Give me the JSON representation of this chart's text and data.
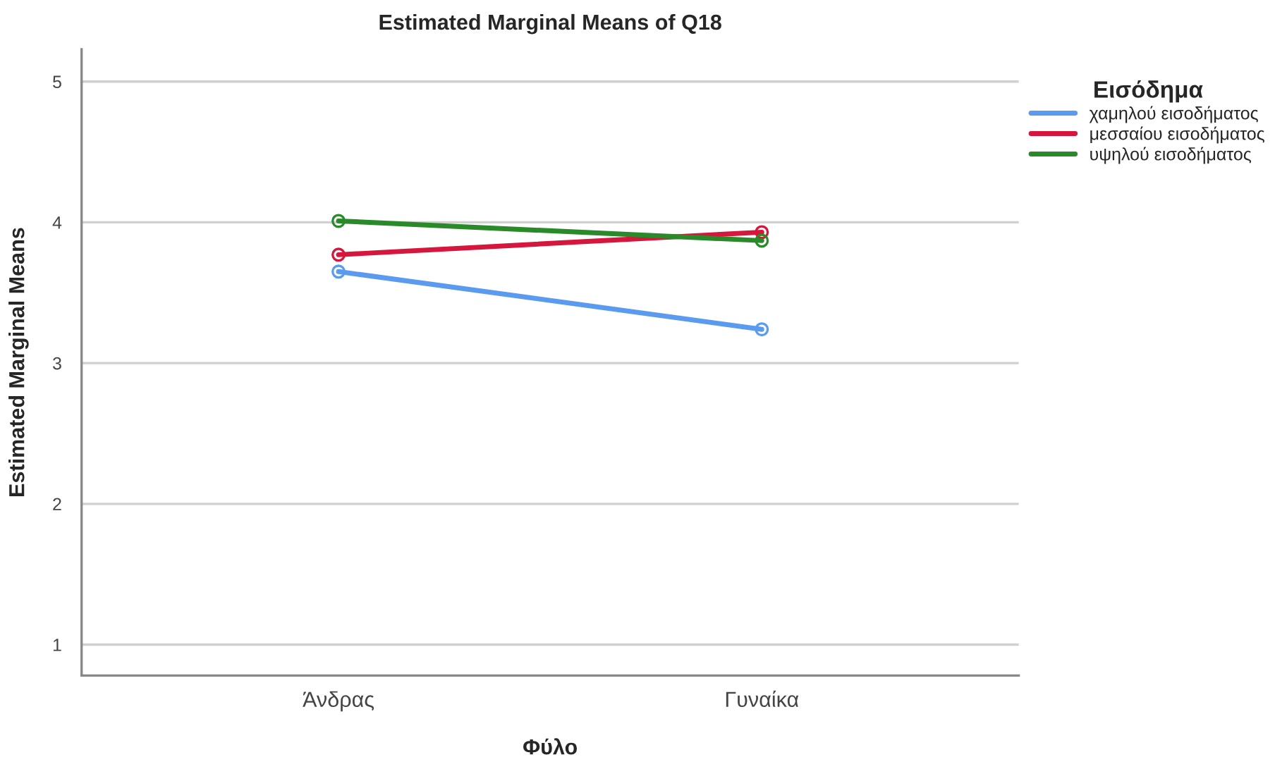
{
  "chart_data": {
    "type": "line",
    "title": "Estimated Marginal Means of Q18",
    "xlabel": "Φύλο",
    "ylabel": "Estimated Marginal Means",
    "legend_title": "Εισόδημα",
    "categories": [
      "Άνδρας",
      "Γυναίκα"
    ],
    "series": [
      {
        "name": "χαμηλού εισοδήματος",
        "color": "#5b9bef",
        "values": [
          3.65,
          3.24
        ]
      },
      {
        "name": "μεσσαίου εισοδήματος",
        "color": "#d6163c",
        "values": [
          3.77,
          3.93
        ]
      },
      {
        "name": "υψηλού εισοδήματος",
        "color": "#2a8a2a",
        "values": [
          4.01,
          3.87
        ]
      }
    ],
    "ylim": [
      0.78,
      5.23
    ],
    "yticks": [
      1,
      2,
      3,
      4,
      5
    ],
    "grid": "y",
    "legend": "right",
    "marker": "circle",
    "line_style": "solid"
  }
}
